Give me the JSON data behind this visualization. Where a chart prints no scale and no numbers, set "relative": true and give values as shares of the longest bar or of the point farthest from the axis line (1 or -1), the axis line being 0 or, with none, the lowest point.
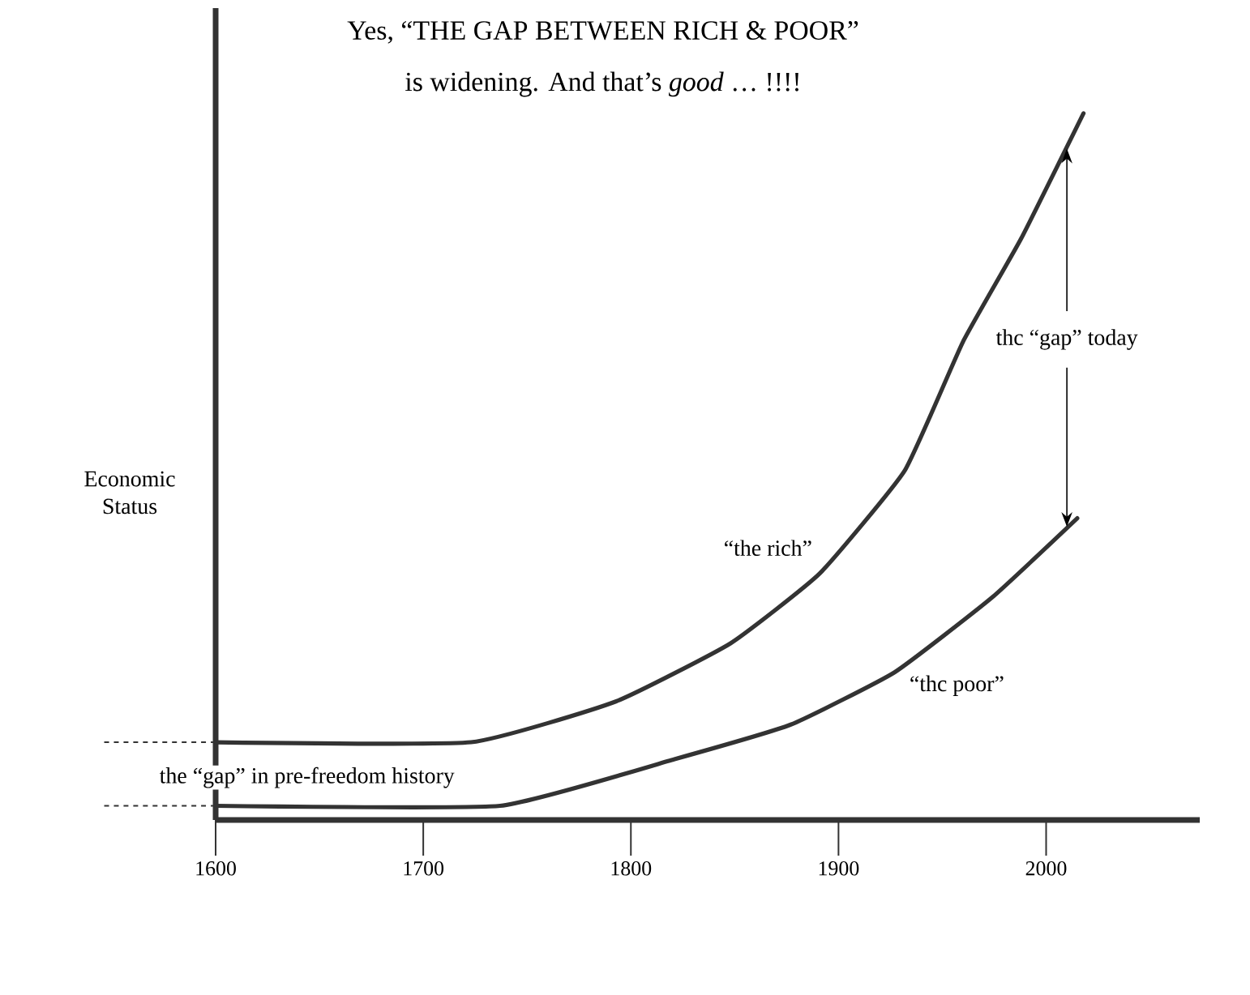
{
  "chart_data": {
    "type": "line",
    "relative": true,
    "title": "Yes, “THE GAP BETWEEN RICH & POOR”",
    "subtitle": "is widening. And that’s *good* … !!!!",
    "ylabel": "Economic Status",
    "xlim": [
      1600,
      2074
    ],
    "xticks": [
      1600,
      1700,
      1800,
      1900,
      2000
    ],
    "grid": false,
    "marker": "none",
    "line_style": "solid",
    "series": [
      {
        "name": "“the rich”",
        "color": "#333333",
        "x": [
          1600,
          1723,
          1793,
          1848,
          1891,
          1932,
          1960,
          1988,
          2018
        ],
        "values": [
          0.11,
          0.11,
          0.168,
          0.25,
          0.349,
          0.495,
          0.677,
          0.823,
          1.0
        ]
      },
      {
        "name": "“thc poor”",
        "color": "#333333",
        "x": [
          1600,
          1737,
          1821,
          1877,
          1927,
          1974,
          2015
        ],
        "values": [
          0.02,
          0.02,
          0.086,
          0.135,
          0.209,
          0.315,
          0.427
        ]
      }
    ],
    "annotations": [
      "thc “gap” today",
      "the “gap” in pre-freedom history"
    ]
  }
}
